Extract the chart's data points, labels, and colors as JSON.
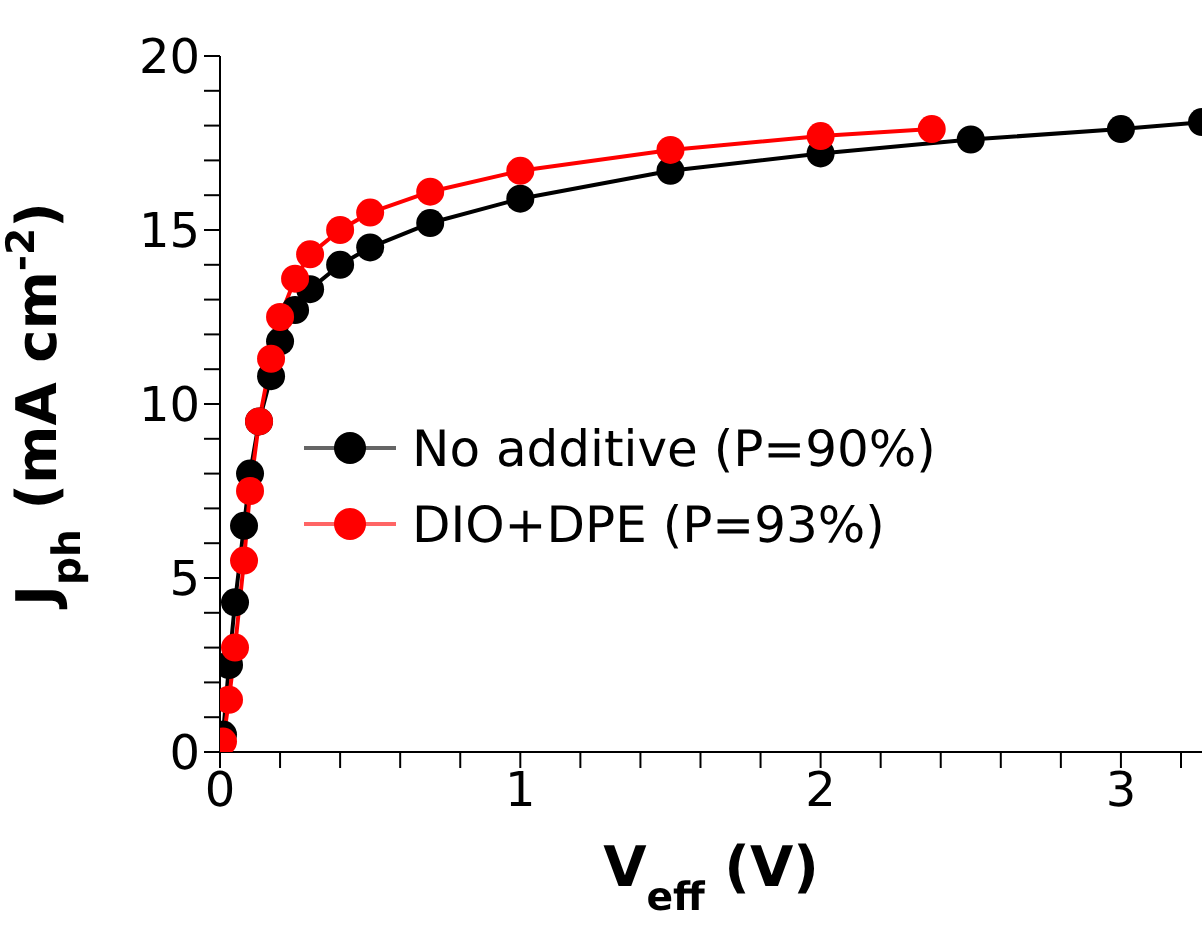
{
  "chart_data": {
    "type": "line",
    "xlabel": "V$_{eff}$ (V)",
    "ylabel": "J$_{ph}$ (mA cm$^{-2}$)",
    "xlim": [
      0,
      3.27
    ],
    "ylim": [
      0,
      20
    ],
    "xticks": [
      0,
      {
        "value": 0.2,
        "label": null
      },
      {
        "value": 0.4,
        "label": null
      },
      {
        "value": 0.6,
        "label": null
      },
      {
        "value": 0.8,
        "label": null
      },
      1,
      {
        "value": 1.2,
        "label": null
      },
      {
        "value": 1.4,
        "label": null
      },
      {
        "value": 1.6,
        "label": null
      },
      {
        "value": 1.8,
        "label": null
      },
      2,
      {
        "value": 2.2,
        "label": null
      },
      {
        "value": 2.4,
        "label": null
      },
      {
        "value": 2.6,
        "label": null
      },
      {
        "value": 2.8,
        "label": null
      },
      3,
      {
        "value": 3.2,
        "label": null
      }
    ],
    "yticks": [
      0,
      {
        "value": 1,
        "label": null
      },
      {
        "value": 2,
        "label": null
      },
      {
        "value": 3,
        "label": null
      },
      {
        "value": 4,
        "label": null
      },
      5,
      {
        "value": 6,
        "label": null
      },
      {
        "value": 7,
        "label": null
      },
      {
        "value": 8,
        "label": null
      },
      {
        "value": 9,
        "label": null
      },
      10,
      {
        "value": 11,
        "label": null
      },
      {
        "value": 12,
        "label": null
      },
      {
        "value": 13,
        "label": null
      },
      {
        "value": 14,
        "label": null
      },
      15,
      {
        "value": 16,
        "label": null
      },
      {
        "value": 17,
        "label": null
      },
      {
        "value": 18,
        "label": null
      },
      {
        "value": 19,
        "label": null
      },
      20
    ],
    "marker": "circle",
    "legend": "left",
    "series": [
      {
        "name": "No additive (P=90%)",
        "color": "#000000",
        "x": [
          0.01,
          0.03,
          0.05,
          0.08,
          0.1,
          0.13,
          0.17,
          0.2,
          0.25,
          0.3,
          0.4,
          0.5,
          0.7,
          1.0,
          1.5,
          2.0,
          2.5,
          3.0,
          3.27
        ],
        "values": [
          0.5,
          2.5,
          4.3,
          6.5,
          8,
          9.5,
          10.8,
          11.8,
          12.7,
          13.3,
          14.0,
          14.5,
          15.2,
          15.9,
          16.7,
          17.2,
          17.6,
          17.9,
          18.1
        ]
      },
      {
        "name": "DIO+DPE (P=93%)",
        "color": "#ff0000",
        "x": [
          0.01,
          0.03,
          0.05,
          0.08,
          0.1,
          0.13,
          0.17,
          0.2,
          0.25,
          0.3,
          0.4,
          0.5,
          0.7,
          1.0,
          1.5,
          2.0,
          2.37
        ],
        "values": [
          0.3,
          1.5,
          3,
          5.5,
          7.5,
          9.5,
          11.3,
          12.5,
          13.6,
          14.3,
          15.0,
          15.5,
          16.1,
          16.7,
          17.3,
          17.7,
          17.9
        ]
      }
    ]
  }
}
